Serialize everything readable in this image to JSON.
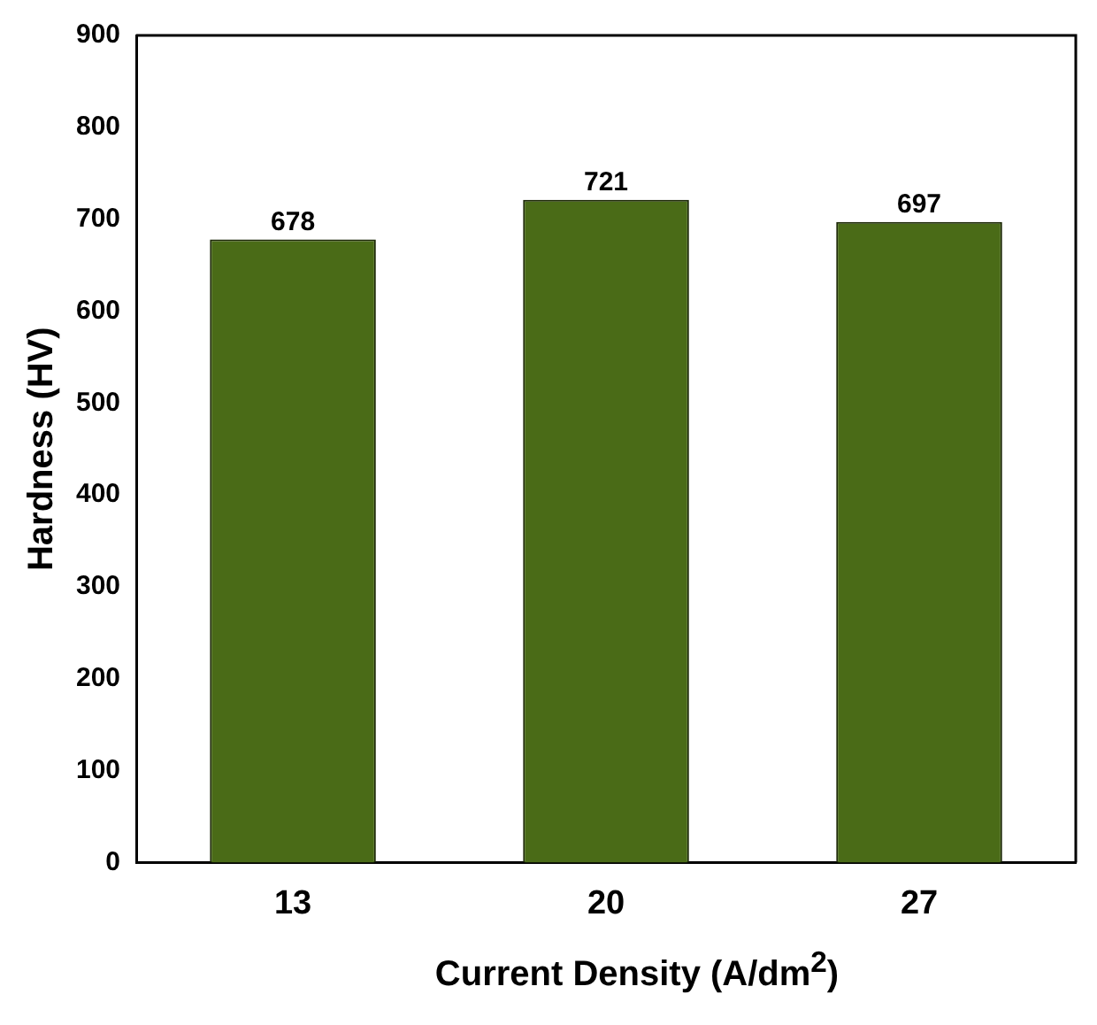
{
  "chart_data": {
    "type": "bar",
    "xlabel": "Current Density (A/dm$^{2}$)",
    "ylabel": "Hardness (HV)",
    "categories": [
      "13",
      "20",
      "27"
    ],
    "values": [
      678,
      721,
      697
    ],
    "color": "#4a6b17",
    "ylim": [
      0,
      900
    ],
    "yticks": [
      0,
      100,
      200,
      300,
      400,
      500,
      600,
      700,
      800,
      900
    ],
    "grid": false,
    "legend": false,
    "data_labels": true
  }
}
